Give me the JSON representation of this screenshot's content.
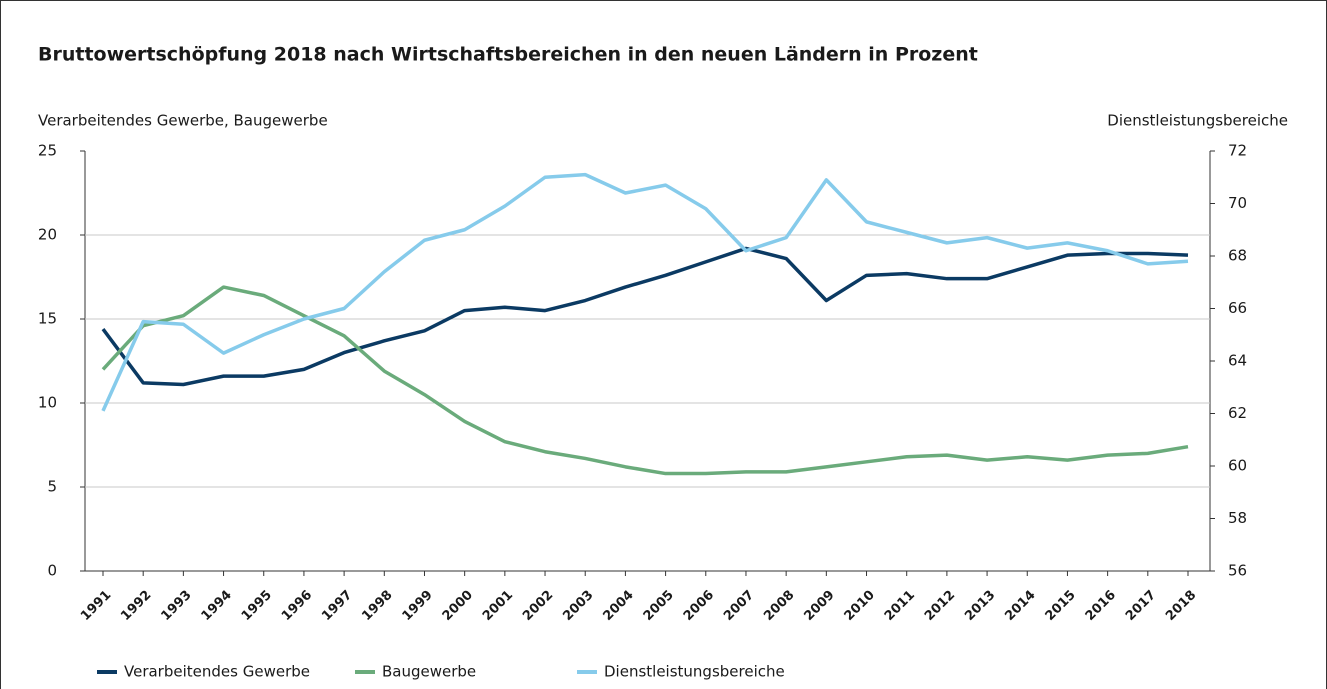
{
  "chart_data": {
    "type": "line",
    "title": "Bruttowertschöpfung 2018 nach Wirtschaftsbereichen in den neuen Ländern in Prozent",
    "y_label": "Verarbeitendes Gewerbe, Baugewerbe",
    "y2_label": "Dienstleistungsbereiche",
    "categories": [
      "1991",
      "1992",
      "1993",
      "1994",
      "1995",
      "1996",
      "1997",
      "1998",
      "1999",
      "2000",
      "2001",
      "2002",
      "2003",
      "2004",
      "2005",
      "2006",
      "2007",
      "2008",
      "2009",
      "2010",
      "2011",
      "2012",
      "2013",
      "2014",
      "2015",
      "2016",
      "2017",
      "2018"
    ],
    "series": [
      {
        "name": "Verarbeitendes Gewerbe",
        "color": "#0b3a63",
        "values": [
          14.4,
          11.2,
          11.1,
          11.6,
          11.6,
          12.0,
          13.0,
          13.7,
          14.3,
          15.5,
          15.7,
          15.5,
          16.1,
          16.9,
          17.6,
          18.4,
          19.2,
          18.6,
          16.1,
          17.6,
          17.7,
          17.4,
          17.4,
          18.1,
          18.8,
          18.9,
          18.9,
          18.8
        ]
      },
      {
        "name": "Baugewerbe",
        "color": "#6aab7b",
        "values": [
          12.0,
          14.6,
          15.2,
          16.9,
          16.4,
          15.2,
          14.0,
          11.9,
          10.5,
          8.9,
          7.7,
          7.1,
          6.7,
          6.2,
          5.8,
          5.8,
          5.9,
          5.9,
          6.2,
          6.5,
          6.8,
          6.9,
          6.6,
          6.8,
          6.6,
          6.9,
          7.0,
          7.4
        ]
      },
      {
        "name": "Dienstleistungsbereiche",
        "color": "#86cbeb",
        "axis": "y2",
        "values": [
          62.1,
          65.5,
          65.4,
          64.3,
          65.0,
          65.6,
          66.0,
          67.4,
          68.6,
          69.0,
          69.9,
          71.0,
          71.1,
          70.4,
          70.7,
          69.8,
          68.2,
          68.7,
          70.9,
          69.3,
          68.9,
          68.5,
          68.7,
          68.3,
          68.5,
          68.2,
          67.7,
          67.8
        ]
      }
    ],
    "ylim": [
      0,
      25
    ],
    "yticks": [
      0,
      5,
      10,
      15,
      20,
      25
    ],
    "y2lim": [
      56,
      72
    ],
    "y2ticks": [
      56,
      58,
      60,
      62,
      64,
      66,
      68,
      70,
      72
    ],
    "grid": true
  }
}
